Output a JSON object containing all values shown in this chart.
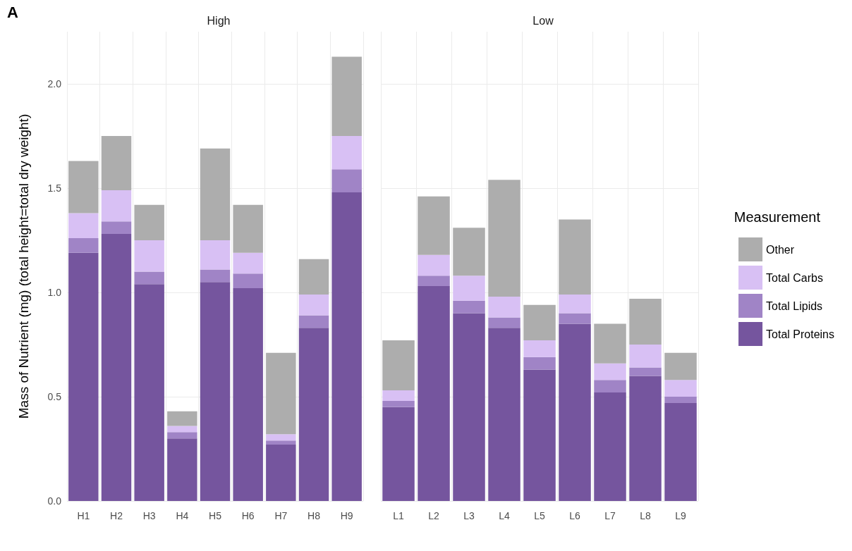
{
  "chart_data": [
    {
      "type": "bar",
      "title": "High",
      "ylabel": "Mass of Nutrient (mg) (total height=total dry weight)",
      "annotations": [
        "A"
      ],
      "categories": [
        "H1",
        "H2",
        "H3",
        "H4",
        "H5",
        "H6",
        "H7",
        "H8",
        "H9"
      ],
      "stacked": true,
      "grid": true,
      "ylim": [
        0,
        2.25
      ],
      "yticks": [
        {
          "value": 0,
          "label": "0.0"
        },
        0.5,
        {
          "value": 1,
          "label": "1.0"
        },
        1.5,
        {
          "value": 2,
          "label": "2.0"
        }
      ],
      "series": [
        {
          "color": "#75559e",
          "values": [
            1.19,
            1.28,
            1.04,
            0.3,
            1.05,
            1.02,
            0.27,
            0.83,
            1.48
          ]
        },
        {
          "color": "#a084c6",
          "values": [
            0.07,
            0.06,
            0.06,
            0.03,
            0.06,
            0.07,
            0.02,
            0.06,
            0.11
          ]
        },
        {
          "color": "#d8c0f4",
          "values": [
            0.12,
            0.15,
            0.15,
            0.03,
            0.14,
            0.1,
            0.03,
            0.1,
            0.16
          ]
        },
        {
          "color": "#adadad",
          "values": [
            0.25,
            0.26,
            0.17,
            0.07,
            0.44,
            0.23,
            0.39,
            0.17,
            0.38
          ]
        }
      ]
    },
    {
      "type": "bar",
      "title": "Low",
      "legend": "right",
      "legend_title": "Measurement",
      "tick_labels": "x",
      "categories": [
        "L1",
        "L2",
        "L3",
        "L4",
        "L5",
        "L6",
        "L7",
        "L8",
        "L9"
      ],
      "stacked": true,
      "grid": true,
      "ylim": [
        0,
        2.25
      ],
      "yticks": [
        0,
        0.5,
        1,
        1.5,
        2
      ],
      "series": [
        {
          "name": "Total Proteins",
          "color": "#75559e",
          "values": [
            0.45,
            1.03,
            0.9,
            0.83,
            0.63,
            0.85,
            0.52,
            0.6,
            0.47
          ]
        },
        {
          "name": "Total Lipids",
          "color": "#a084c6",
          "values": [
            0.03,
            0.05,
            0.06,
            0.05,
            0.06,
            0.05,
            0.06,
            0.04,
            0.03
          ]
        },
        {
          "name": "Total Carbs",
          "color": "#d8c0f4",
          "values": [
            0.05,
            0.1,
            0.12,
            0.1,
            0.08,
            0.09,
            0.08,
            0.11,
            0.08
          ]
        },
        {
          "name": "Other",
          "color": "#adadad",
          "values": [
            0.24,
            0.28,
            0.23,
            0.56,
            0.17,
            0.36,
            0.19,
            0.22,
            0.13
          ]
        }
      ]
    }
  ]
}
